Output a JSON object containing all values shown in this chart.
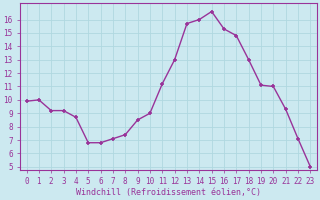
{
  "x": [
    0,
    1,
    2,
    3,
    4,
    5,
    6,
    7,
    8,
    9,
    10,
    11,
    12,
    13,
    14,
    15,
    16,
    17,
    18,
    19,
    20,
    21,
    22,
    23
  ],
  "y": [
    9.9,
    10.0,
    9.2,
    9.2,
    8.7,
    6.8,
    6.8,
    7.1,
    7.4,
    8.5,
    9.0,
    11.2,
    13.0,
    15.7,
    16.0,
    16.6,
    15.3,
    14.8,
    13.0,
    11.1,
    11.0,
    9.3,
    7.1,
    5.0
  ],
  "line_color": "#993399",
  "marker": "+",
  "bg_color": "#cce9f0",
  "grid_color": "#b0d8e0",
  "xlabel": "Windchill (Refroidissement éolien,°C)",
  "xlabel_color": "#993399",
  "tick_color": "#993399",
  "ylim_min": 4.8,
  "ylim_max": 17.2,
  "xlim_min": -0.5,
  "xlim_max": 23.5,
  "yticks": [
    5,
    6,
    7,
    8,
    9,
    10,
    11,
    12,
    13,
    14,
    15,
    16
  ],
  "xticks": [
    0,
    1,
    2,
    3,
    4,
    5,
    6,
    7,
    8,
    9,
    10,
    11,
    12,
    13,
    14,
    15,
    16,
    17,
    18,
    19,
    20,
    21,
    22,
    23
  ],
  "tick_fontsize": 5.5,
  "xlabel_fontsize": 6.0,
  "marker_size": 3.5,
  "line_width": 1.0
}
